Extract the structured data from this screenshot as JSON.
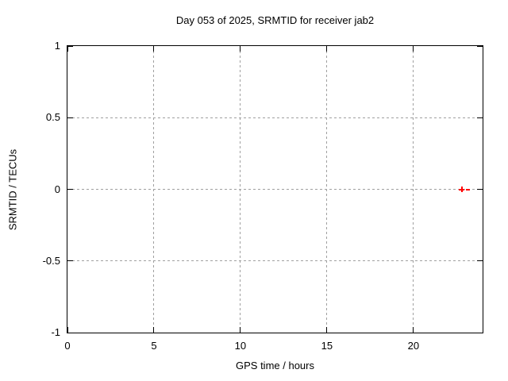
{
  "title": "Day 053 of 2025, SRMTID for receiver jab2",
  "chart_data": {
    "type": "scatter",
    "title": "Day 053 of 2025, SRMTID for receiver jab2",
    "xlabel": "GPS time / hours",
    "ylabel": "SRMTID / TECUs",
    "xlim": [
      0,
      24
    ],
    "ylim": [
      -1,
      1
    ],
    "x_tick_values": [
      0,
      5,
      10,
      15,
      20
    ],
    "x_tick_labels": [
      "0",
      "5",
      "10",
      "15",
      "20"
    ],
    "y_tick_values": [
      1,
      0.5,
      0,
      -0.5,
      -1
    ],
    "y_tick_labels": [
      "1",
      "0.5",
      "0",
      "-0.5",
      "-1"
    ],
    "grid": true,
    "grid_style": "dashed",
    "legend": null,
    "series": [
      {
        "name": "SRMTID",
        "marker": "plus",
        "color": "#ff0000",
        "points": [
          {
            "x": 22.8,
            "y": 0.0
          }
        ],
        "trailing_dash": {
          "x1": 23.05,
          "x2": 23.25,
          "y": 0.0
        }
      }
    ]
  },
  "colors": {
    "background": "#ffffff",
    "axis": "#000000",
    "grid": "#a0a0a0",
    "text": "#000000",
    "marker": "#ff0000"
  }
}
